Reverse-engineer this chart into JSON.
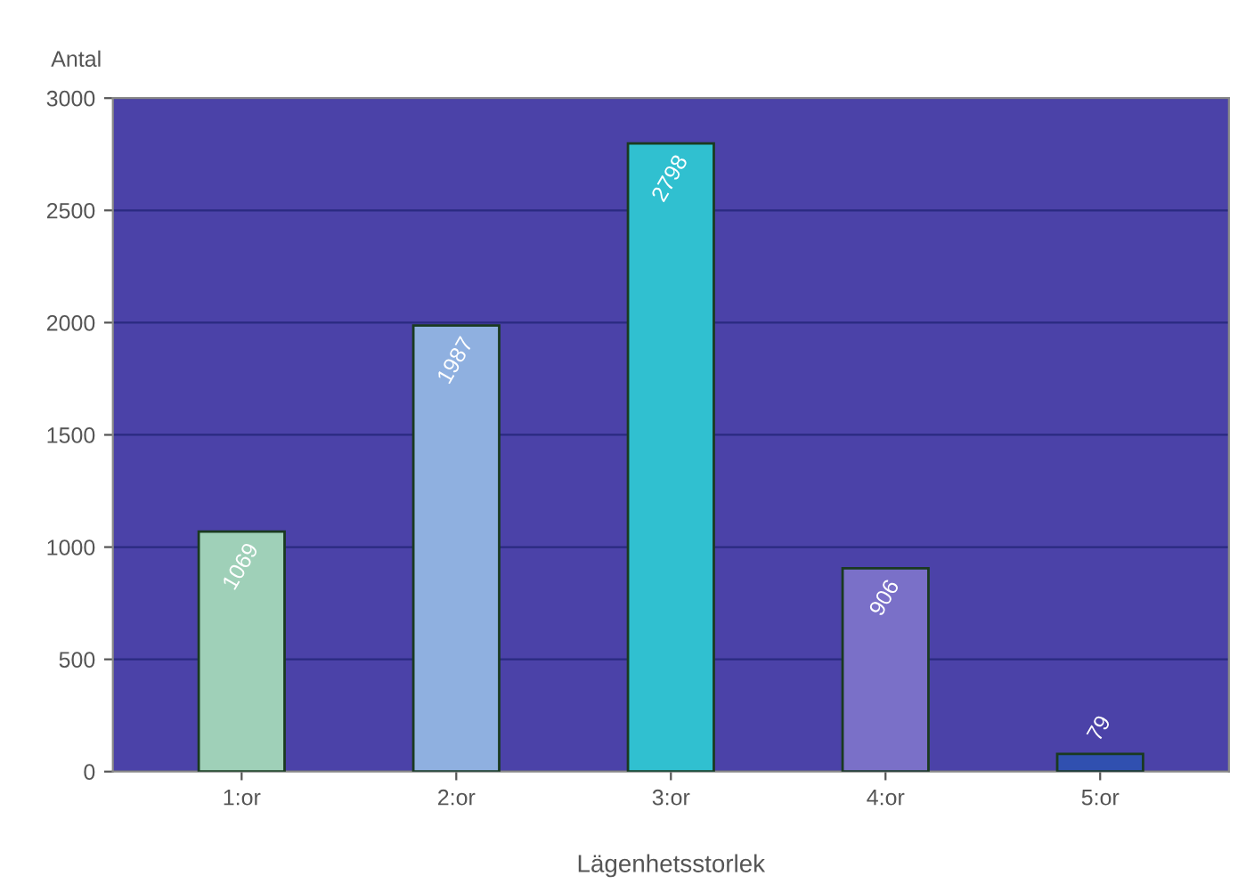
{
  "chart_data": {
    "type": "bar",
    "xlabel": "Lägenhetsstorlek",
    "ylabel": "Antal",
    "categories": [
      "1:or",
      "2:or",
      "3:or",
      "4:or",
      "5:or"
    ],
    "values": [
      1069,
      1987,
      2798,
      906,
      79
    ],
    "colors": [
      "#9fd0b8",
      "#8fb0e0",
      "#30c0d0",
      "#7a70c8",
      "#3050b0"
    ],
    "ylim": [
      0,
      3000
    ],
    "yticks": [
      0,
      500,
      1000,
      1500,
      2000,
      2500,
      3000
    ],
    "grid": "y",
    "data_labels": true
  }
}
